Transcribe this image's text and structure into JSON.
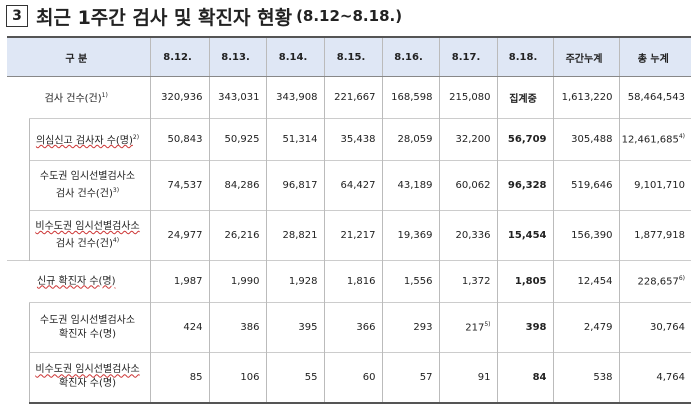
{
  "title": {
    "number": "3",
    "main": "최근 1주간 검사 및 확진자 현황",
    "period": "(8.12~8.18.)"
  },
  "table": {
    "headers": [
      "구   분",
      "8.12.",
      "8.13.",
      "8.14.",
      "8.15.",
      "8.16.",
      "8.17.",
      "8.18.",
      "주간누계",
      "총 누계"
    ],
    "rows": [
      {
        "label": "검사 건수(건)",
        "sup": "1)",
        "values": [
          "320,936",
          "343,031",
          "343,908",
          "221,667",
          "168,598",
          "215,080",
          "집계중",
          "1,613,220",
          "58,464,543"
        ],
        "sup_last": ""
      },
      {
        "label": "의심신고 검사자 수(명)",
        "sup": "2)",
        "values": [
          "50,843",
          "50,925",
          "51,314",
          "35,438",
          "28,059",
          "32,200",
          "56,709",
          "305,488",
          "12,461,685"
        ],
        "sup_last": "4)"
      },
      {
        "label1": "수도권 임시선별검사소",
        "label2": "검사 건수(건)",
        "sup": "3)",
        "values": [
          "74,537",
          "84,286",
          "96,817",
          "64,427",
          "43,189",
          "60,062",
          "96,328",
          "519,646",
          "9,101,710"
        ],
        "sup_last": ""
      },
      {
        "label1": "비수도권 임시선별검사소",
        "label2": "검사 건수(건)",
        "sup": "4)",
        "values": [
          "24,977",
          "26,216",
          "28,821",
          "21,217",
          "19,369",
          "20,336",
          "15,454",
          "156,390",
          "1,877,918"
        ],
        "sup_last": ""
      },
      {
        "label": "신규 확진자 수(명)",
        "values": [
          "1,987",
          "1,990",
          "1,928",
          "1,816",
          "1,556",
          "1,372",
          "1,805",
          "12,454",
          "228,657"
        ],
        "sup_last": "6)"
      },
      {
        "label1": "수도권 임시선별검사소",
        "label2": "확진자 수(명)",
        "values": [
          "424",
          "386",
          "395",
          "366",
          "293",
          "217",
          "398",
          "2,479",
          "30,764"
        ],
        "sup_217": "5)"
      },
      {
        "label1": "비수도권 임시선별검사소",
        "label2": "확진자 수(명)",
        "values": [
          "85",
          "106",
          "55",
          "60",
          "57",
          "91",
          "84",
          "538",
          "4,764"
        ]
      }
    ]
  }
}
